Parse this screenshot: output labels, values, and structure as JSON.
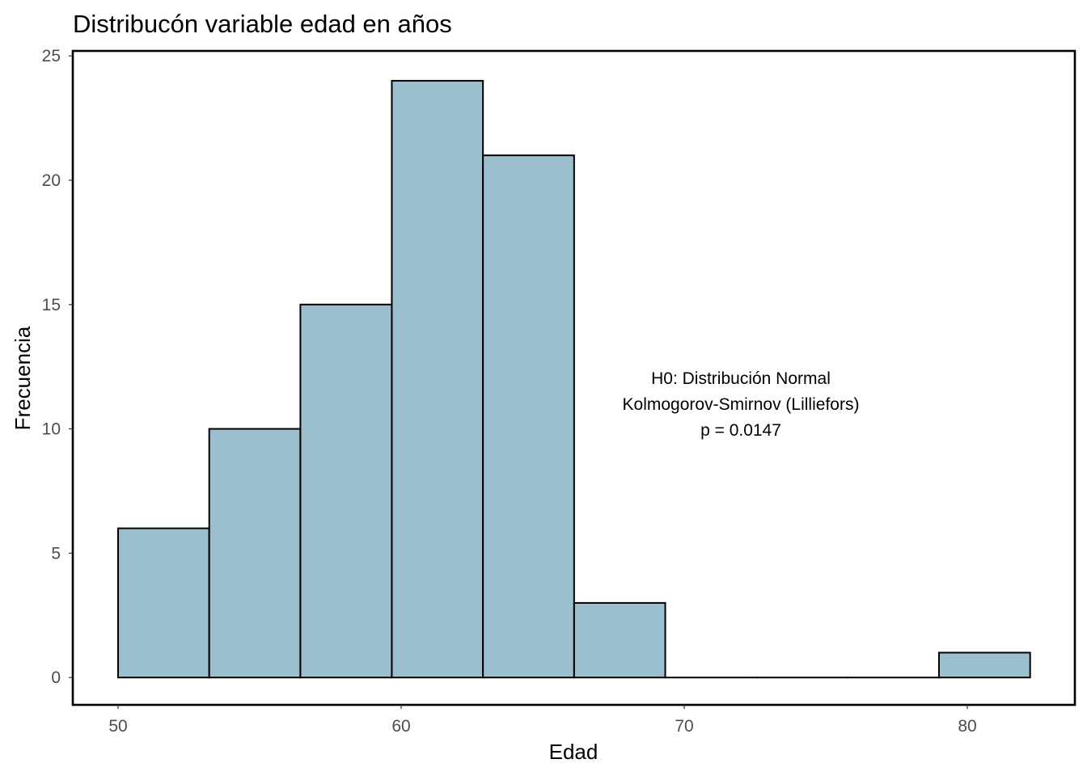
{
  "chart_data": {
    "type": "bar",
    "title": "Distribucón variable edad en años",
    "xlabel": "Edad",
    "ylabel": "Frecuencia",
    "bins": [
      {
        "start": 50.0,
        "end": 53.22,
        "count": 6
      },
      {
        "start": 53.22,
        "end": 56.44,
        "count": 10
      },
      {
        "start": 56.44,
        "end": 59.67,
        "count": 15
      },
      {
        "start": 59.67,
        "end": 62.89,
        "count": 24
      },
      {
        "start": 62.89,
        "end": 66.11,
        "count": 21
      },
      {
        "start": 66.11,
        "end": 69.33,
        "count": 3
      },
      {
        "start": 69.33,
        "end": 72.56,
        "count": 0
      },
      {
        "start": 72.56,
        "end": 75.78,
        "count": 0
      },
      {
        "start": 75.78,
        "end": 79.0,
        "count": 0
      },
      {
        "start": 79.0,
        "end": 82.22,
        "count": 1
      }
    ],
    "xlim": [
      48.4,
      83.8
    ],
    "ylim": [
      -1.1,
      25.2
    ],
    "x_ticks": [
      50,
      60,
      70,
      80
    ],
    "y_ticks": [
      0,
      5,
      10,
      15,
      20,
      25
    ],
    "x_tick_labels": [
      "50",
      "60",
      "70",
      "80"
    ],
    "y_tick_labels": [
      "0",
      "5",
      "10",
      "15",
      "20",
      "25"
    ],
    "grid": false,
    "bar_fill": "#9bbfcd",
    "bar_stroke": "#000000",
    "annotation": {
      "x": 72.0,
      "y": 11.0,
      "lines": [
        "H0: Distribución Normal",
        "Kolmogorov-Smirnov (Lilliefors)",
        "p = 0.0147"
      ]
    }
  }
}
